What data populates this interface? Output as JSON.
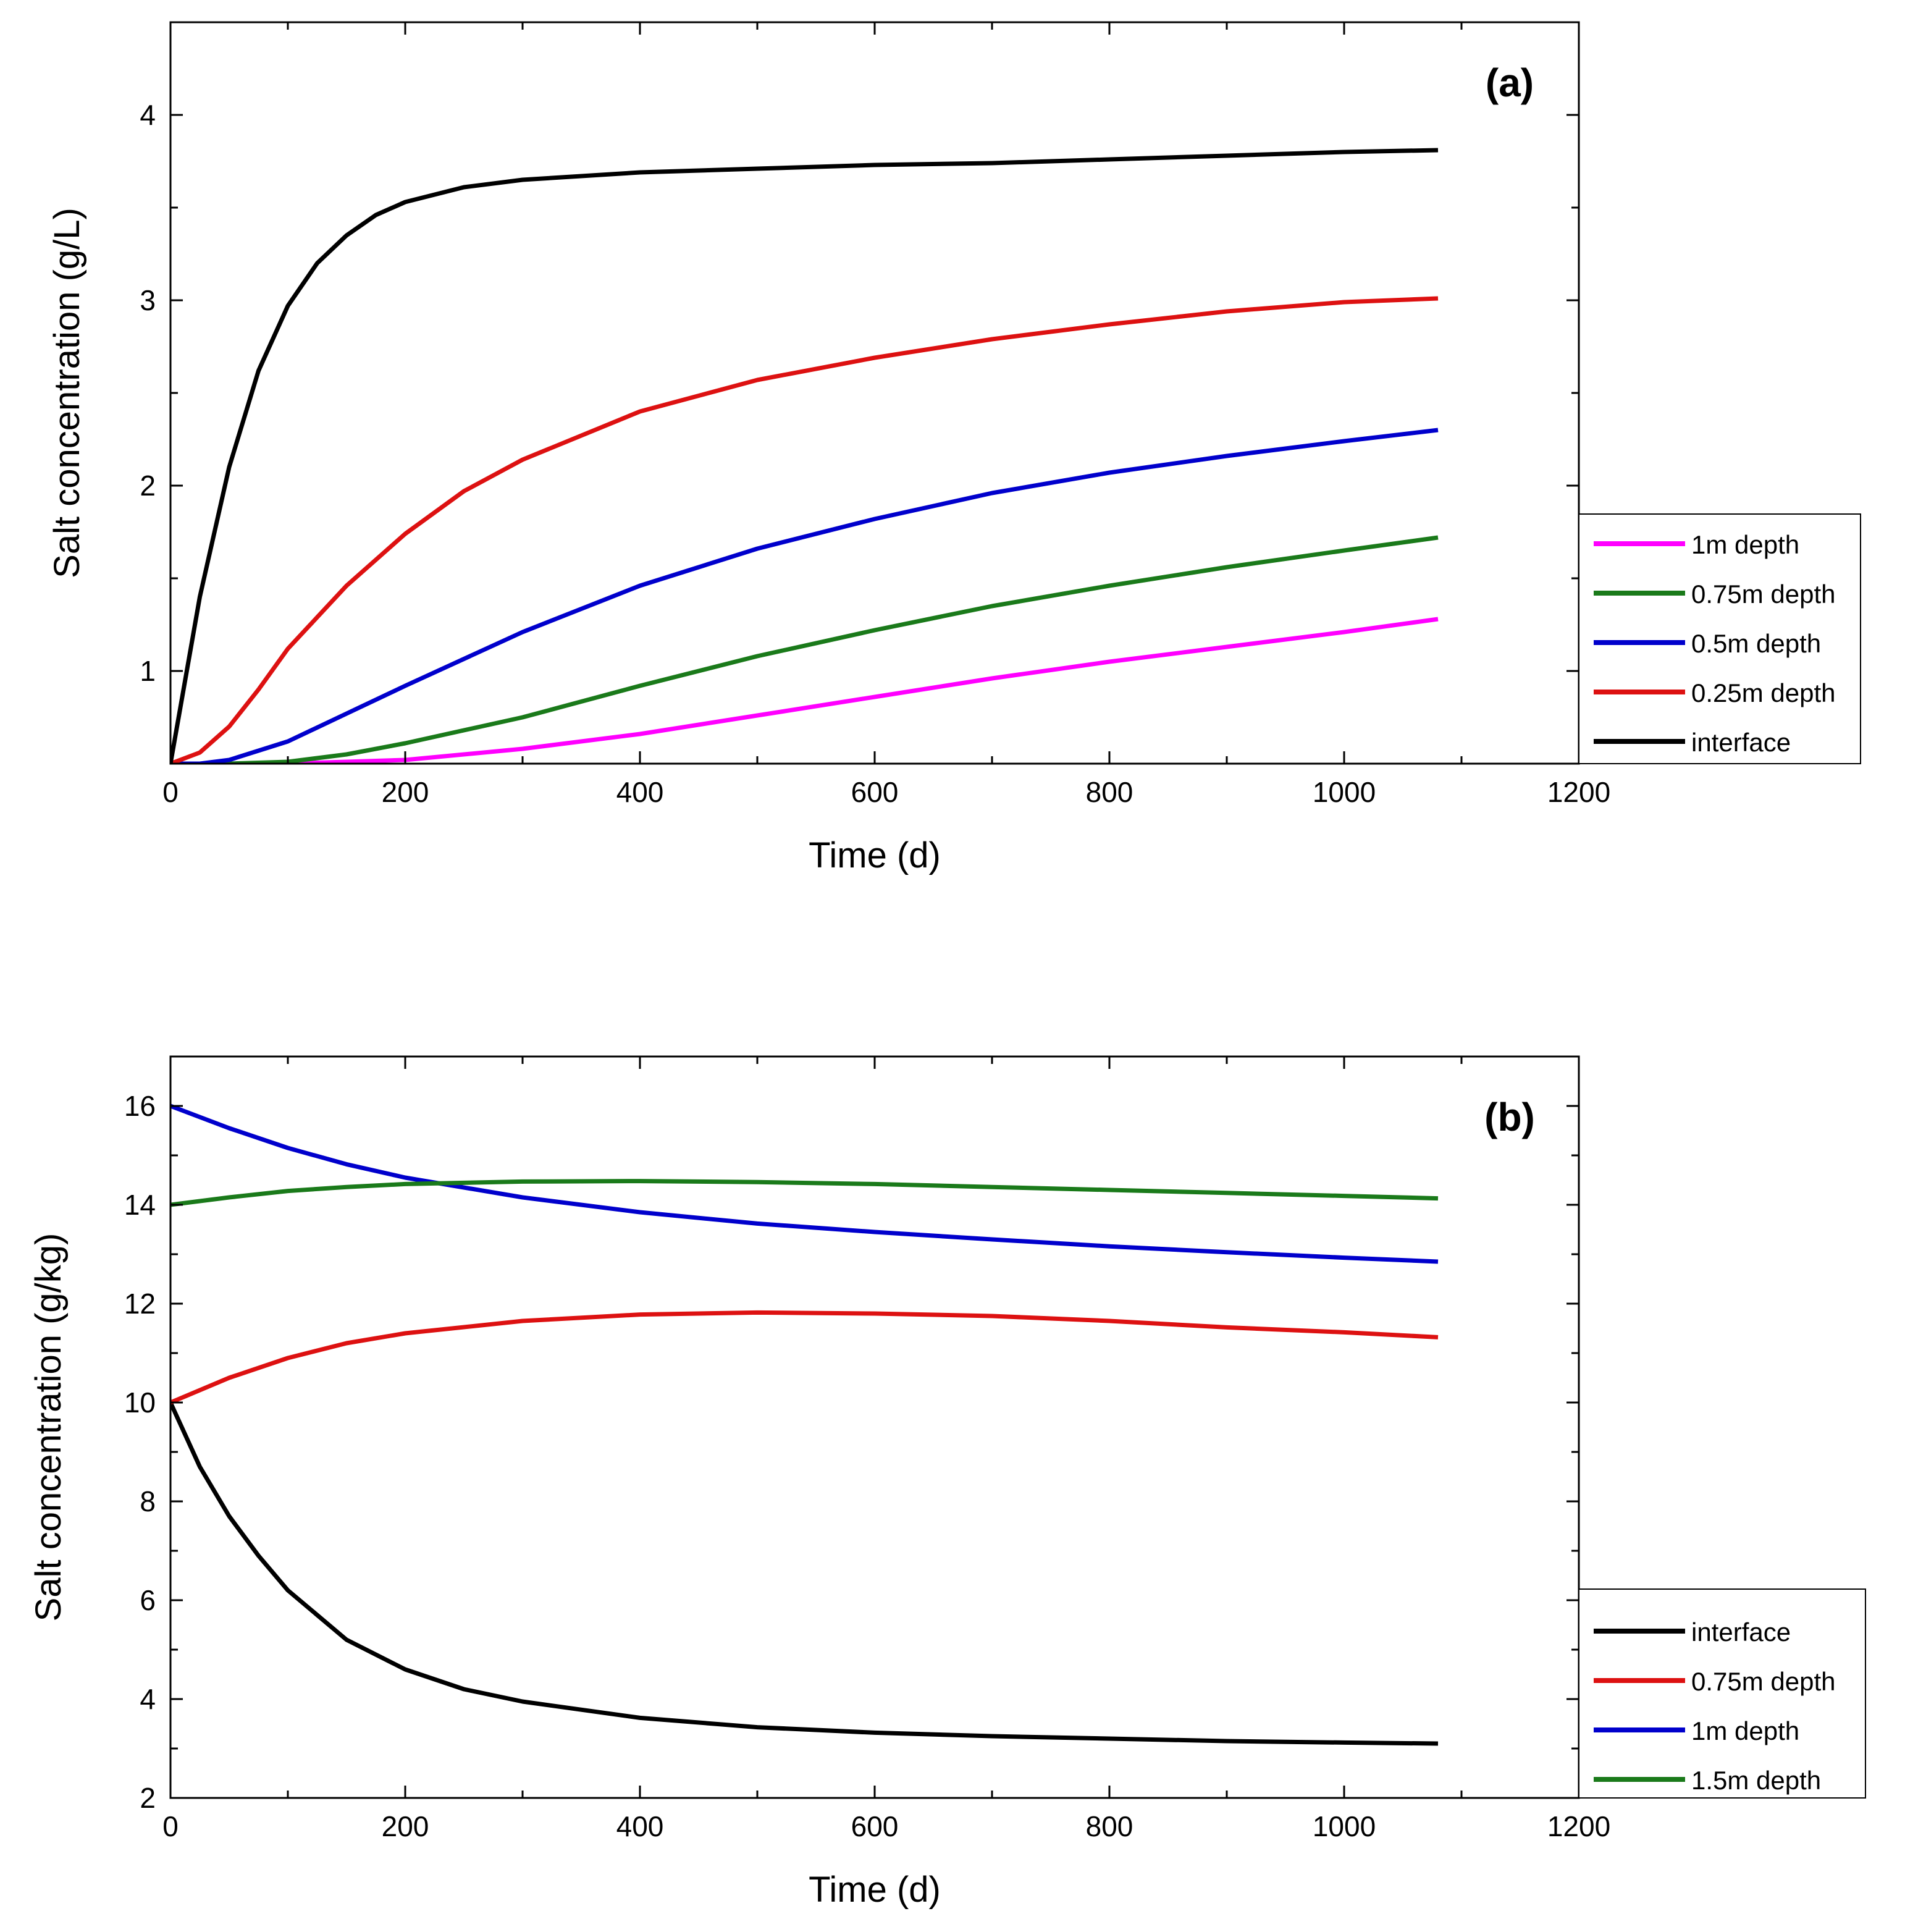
{
  "chart_data": [
    {
      "type": "line",
      "panel_label": "(a)",
      "xlabel": "Time (d)",
      "ylabel": "Salt concentration (g/L)",
      "xlim": [
        0,
        1200
      ],
      "ylim": [
        0.5,
        4.5
      ],
      "xticks": [
        0,
        200,
        400,
        600,
        800,
        1000,
        1200
      ],
      "yticks": [
        1,
        2,
        3,
        4
      ],
      "xtick_labels": [
        "0",
        "200",
        "400",
        "600",
        "800",
        "1000",
        "1200"
      ],
      "ytick_labels": [
        "1",
        "2",
        "3",
        "4"
      ],
      "grid": false,
      "legend_position": "right",
      "series": [
        {
          "name": "1m depth",
          "color": "#ff00ff",
          "x": [
            0,
            100,
            200,
            300,
            400,
            500,
            600,
            700,
            800,
            900,
            1000,
            1080
          ],
          "y": [
            0.5,
            0.5,
            0.52,
            0.58,
            0.66,
            0.76,
            0.86,
            0.96,
            1.05,
            1.13,
            1.21,
            1.28
          ]
        },
        {
          "name": "0.75m depth",
          "color": "#1a7a1a",
          "x": [
            0,
            50,
            100,
            150,
            200,
            300,
            400,
            500,
            600,
            700,
            800,
            900,
            1000,
            1080
          ],
          "y": [
            0.5,
            0.5,
            0.51,
            0.55,
            0.61,
            0.75,
            0.92,
            1.08,
            1.22,
            1.35,
            1.46,
            1.56,
            1.65,
            1.72
          ]
        },
        {
          "name": "0.5m depth",
          "color": "#0000cc",
          "x": [
            0,
            25,
            50,
            100,
            150,
            200,
            300,
            400,
            500,
            600,
            700,
            800,
            900,
            1000,
            1080
          ],
          "y": [
            0.5,
            0.5,
            0.52,
            0.62,
            0.77,
            0.92,
            1.21,
            1.46,
            1.66,
            1.82,
            1.96,
            2.07,
            2.16,
            2.24,
            2.3
          ]
        },
        {
          "name": "0.25m depth",
          "color": "#dd1111",
          "x": [
            0,
            25,
            50,
            75,
            100,
            150,
            200,
            250,
            300,
            400,
            500,
            600,
            700,
            800,
            900,
            1000,
            1080
          ],
          "y": [
            0.5,
            0.56,
            0.7,
            0.9,
            1.12,
            1.46,
            1.74,
            1.97,
            2.14,
            2.4,
            2.57,
            2.69,
            2.79,
            2.87,
            2.94,
            2.99,
            3.01
          ]
        },
        {
          "name": "interface",
          "color": "#000000",
          "x": [
            0,
            25,
            50,
            75,
            100,
            125,
            150,
            175,
            200,
            250,
            300,
            400,
            500,
            600,
            700,
            800,
            900,
            1000,
            1080
          ],
          "y": [
            0.5,
            1.4,
            2.1,
            2.62,
            2.97,
            3.2,
            3.35,
            3.46,
            3.53,
            3.61,
            3.65,
            3.69,
            3.71,
            3.73,
            3.74,
            3.76,
            3.78,
            3.8,
            3.81
          ]
        }
      ],
      "legend_order": [
        "1m depth",
        "0.75m depth",
        "0.5m depth",
        "0.25m depth",
        "interface"
      ]
    },
    {
      "type": "line",
      "panel_label": "(b)",
      "xlabel": "Time (d)",
      "ylabel": "Salt concentration (g/kg)",
      "xlim": [
        0,
        1200
      ],
      "ylim": [
        2,
        17
      ],
      "xticks": [
        0,
        200,
        400,
        600,
        800,
        1000,
        1200
      ],
      "yticks": [
        2,
        4,
        6,
        8,
        10,
        12,
        14,
        16
      ],
      "xtick_labels": [
        "0",
        "200",
        "400",
        "600",
        "800",
        "1000",
        "1200"
      ],
      "ytick_labels": [
        "2",
        "4",
        "6",
        "8",
        "10",
        "12",
        "14",
        "16"
      ],
      "grid": false,
      "legend_position": "bottom-right",
      "series": [
        {
          "name": "interface",
          "color": "#000000",
          "x": [
            0,
            25,
            50,
            75,
            100,
            150,
            200,
            250,
            300,
            400,
            500,
            600,
            700,
            800,
            900,
            1000,
            1080
          ],
          "y": [
            10,
            8.7,
            7.7,
            6.9,
            6.2,
            5.2,
            4.6,
            4.2,
            3.95,
            3.62,
            3.43,
            3.32,
            3.25,
            3.2,
            3.15,
            3.12,
            3.1
          ]
        },
        {
          "name": "0.75m depth",
          "color": "#dd1111",
          "x": [
            0,
            50,
            100,
            150,
            200,
            300,
            400,
            500,
            600,
            700,
            800,
            900,
            1000,
            1080
          ],
          "y": [
            10,
            10.5,
            10.9,
            11.2,
            11.4,
            11.65,
            11.78,
            11.82,
            11.8,
            11.75,
            11.65,
            11.52,
            11.42,
            11.32
          ]
        },
        {
          "name": "1m depth",
          "color": "#0000cc",
          "x": [
            0,
            50,
            100,
            150,
            200,
            300,
            400,
            500,
            600,
            700,
            800,
            900,
            1000,
            1080
          ],
          "y": [
            16,
            15.55,
            15.15,
            14.82,
            14.55,
            14.15,
            13.85,
            13.62,
            13.45,
            13.3,
            13.16,
            13.04,
            12.93,
            12.85
          ]
        },
        {
          "name": "1.5m depth",
          "color": "#1a7a1a",
          "x": [
            0,
            50,
            100,
            150,
            200,
            300,
            400,
            500,
            600,
            700,
            800,
            900,
            1000,
            1080
          ],
          "y": [
            14,
            14.15,
            14.28,
            14.36,
            14.42,
            14.47,
            14.48,
            14.46,
            14.42,
            14.36,
            14.3,
            14.24,
            14.18,
            14.13
          ]
        }
      ],
      "legend_order": [
        "interface",
        "0.75m depth",
        "1m depth",
        "1.5m depth"
      ]
    }
  ]
}
